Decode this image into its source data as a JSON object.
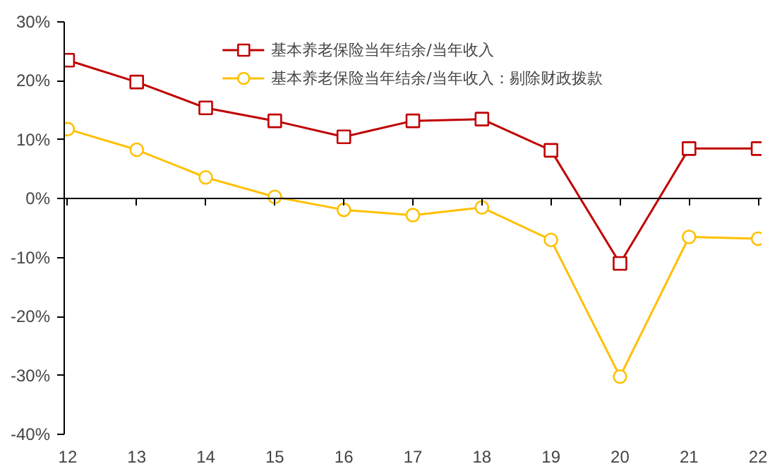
{
  "chart_data": {
    "type": "line",
    "categories": [
      "12",
      "13",
      "14",
      "15",
      "16",
      "17",
      "18",
      "19",
      "20",
      "21",
      "22"
    ],
    "series": [
      {
        "name": "基本养老保险当年结余/当年收入",
        "color": "#c00000",
        "marker": "square",
        "values": [
          23.5,
          19.8,
          15.4,
          13.2,
          10.5,
          13.2,
          13.5,
          8.2,
          -11,
          8.5,
          8.5
        ]
      },
      {
        "name": "基本养老保险当年结余/当年收入：剔除财政拨款",
        "color": "#ffc000",
        "marker": "circle",
        "values": [
          11.8,
          8.3,
          3.6,
          0.3,
          -1.9,
          -2.8,
          -1.5,
          -7,
          -30.2,
          -6.5,
          -6.8
        ]
      }
    ],
    "ylim": [
      -40,
      30
    ],
    "yticks": [
      {
        "value": -40,
        "label": "-40%"
      },
      {
        "value": -30,
        "label": "-30%"
      },
      {
        "value": -20,
        "label": "-20%"
      },
      {
        "value": -10,
        "label": "-10%"
      },
      {
        "value": 0,
        "label": "0%"
      },
      {
        "value": 10,
        "label": "10%"
      },
      {
        "value": 20,
        "label": "20%"
      },
      {
        "value": 30,
        "label": "30%"
      }
    ],
    "legend": "top",
    "line_style": "solid"
  }
}
